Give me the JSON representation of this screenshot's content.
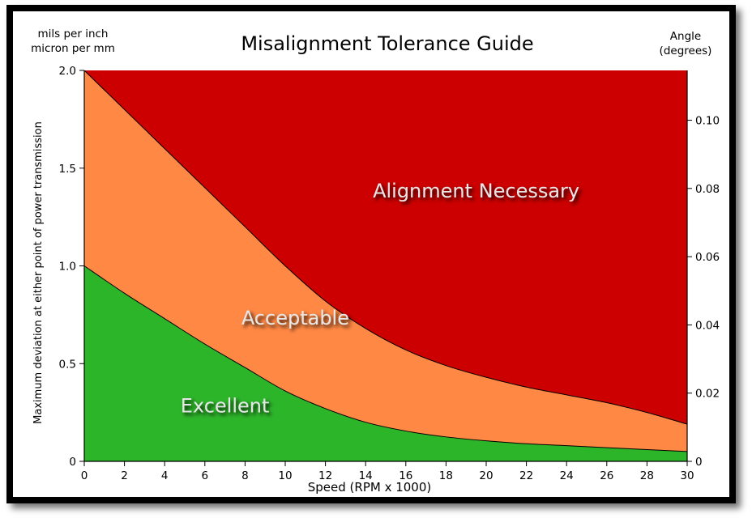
{
  "chart_data": {
    "type": "area",
    "title": "Misalignment Tolerance Guide",
    "xlabel": "Speed (RPM x 1000)",
    "ylabel": "Maximum deviation at either point of power transmission",
    "y_units_lines": [
      "mils per inch",
      "micron per mm"
    ],
    "y2_units_lines": [
      "Angle",
      "(degrees)"
    ],
    "xlim": [
      0,
      30
    ],
    "ylim": [
      0,
      2.0
    ],
    "y2lim": [
      0,
      0.1146
    ],
    "x_ticks": [
      0,
      2,
      4,
      6,
      8,
      10,
      12,
      14,
      16,
      18,
      20,
      22,
      24,
      26,
      28,
      30
    ],
    "y_ticks": [
      0,
      0.5,
      1.0,
      1.5,
      2.0
    ],
    "y_tick_labels": [
      "0",
      "0.5",
      "1.0",
      "1.5",
      "2.0"
    ],
    "y2_ticks": [
      0,
      0.02,
      0.04,
      0.06,
      0.08,
      0.1
    ],
    "y2_tick_labels": [
      "0",
      "0.02",
      "0.04",
      "0.06",
      "0.08",
      "0.10"
    ],
    "grid": false,
    "x": [
      0,
      2,
      4,
      6,
      8,
      10,
      12,
      14,
      16,
      18,
      20,
      22,
      24,
      26,
      28,
      30
    ],
    "series": [
      {
        "name": "Excellent",
        "color": "#2db52a",
        "values": [
          1.0,
          0.86,
          0.73,
          0.6,
          0.48,
          0.36,
          0.27,
          0.2,
          0.155,
          0.125,
          0.105,
          0.09,
          0.08,
          0.07,
          0.06,
          0.05
        ]
      },
      {
        "name": "Acceptable",
        "color": "#ff8844",
        "values": [
          2.0,
          1.8,
          1.6,
          1.4,
          1.2,
          1.0,
          0.82,
          0.68,
          0.57,
          0.49,
          0.43,
          0.38,
          0.34,
          0.3,
          0.25,
          0.19
        ]
      },
      {
        "name": "Alignment Necessary",
        "color": "#cc0000",
        "values": [
          2.0,
          2.0,
          2.0,
          2.0,
          2.0,
          2.0,
          2.0,
          2.0,
          2.0,
          2.0,
          2.0,
          2.0,
          2.0,
          2.0,
          2.0,
          2.0
        ]
      }
    ],
    "zone_labels": [
      {
        "text": "Excellent",
        "x": 7,
        "y": 0.25
      },
      {
        "text": "Acceptable",
        "x": 10.5,
        "y": 0.7
      },
      {
        "text": "Alignment Necessary",
        "x": 19.5,
        "y": 1.35
      }
    ]
  }
}
